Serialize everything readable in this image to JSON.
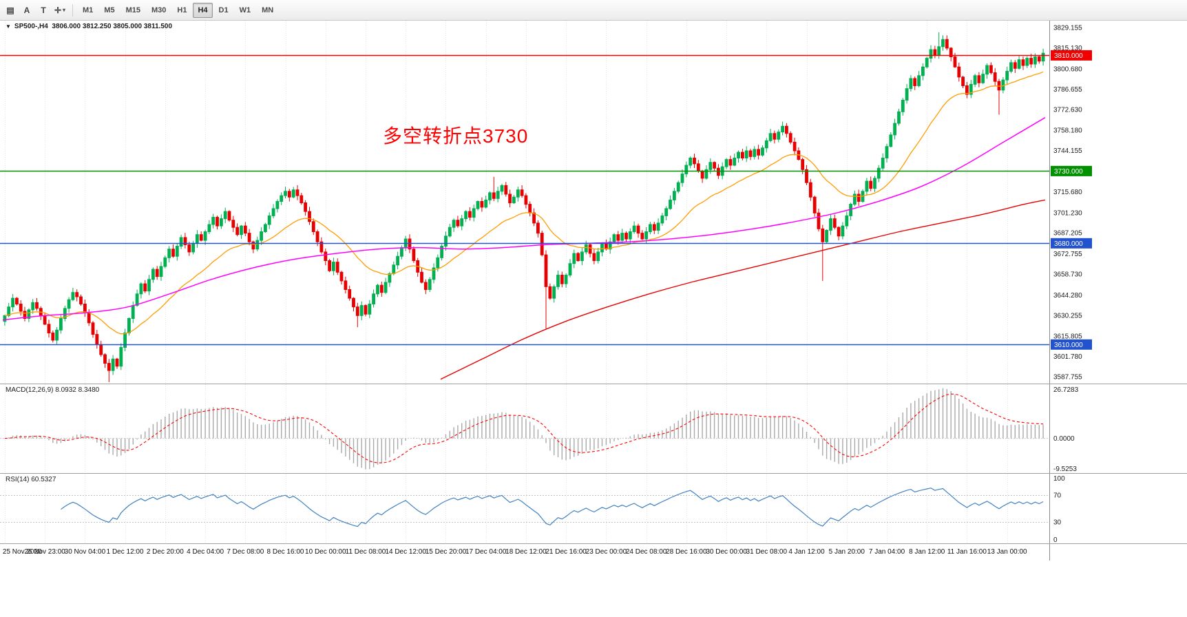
{
  "colors": {
    "up": "#00b051",
    "down": "#e60000",
    "ma_fast": "#ff9d00",
    "ma_mid": "#ff00ff",
    "ma_slow": "#e60000",
    "macd_hist": "#a9a9a9",
    "macd_signal": "#ff0000",
    "rsi": "#4080c0",
    "grid": "#e3e3e3",
    "axis_border": "#8a8a8a",
    "hline_red": "#f00000",
    "hline_green": "#009000",
    "hline_blue": "#2253cc",
    "annotation": "#ff0000"
  },
  "toolbar": {
    "tools": [
      {
        "id": "chart-window",
        "glyph": "▤"
      },
      {
        "id": "label-tool",
        "glyph": "A"
      },
      {
        "id": "text-tool",
        "glyph": "T"
      },
      {
        "id": "cursor-tool",
        "glyph": "✛",
        "caret": true
      }
    ],
    "timeframes": [
      "M1",
      "M5",
      "M15",
      "M30",
      "H1",
      "H4",
      "D1",
      "W1",
      "MN"
    ],
    "active_timeframe": "H4"
  },
  "chart": {
    "title": "SP500-,H4  3806.000 3812.250 3805.000 3811.500",
    "annotation": "多空转折点3730",
    "price_ticks": [
      "3829.155",
      "3815.130",
      "3800.680",
      "3786.655",
      "3772.630",
      "3758.180",
      "3744.155",
      "3715.680",
      "3701.230",
      "3687.205",
      "3672.755",
      "3658.730",
      "3644.280",
      "3630.255",
      "3615.805",
      "3601.780",
      "3587.755"
    ],
    "hlines": [
      {
        "price": 3810.0,
        "label": "3810.000",
        "color": "#f00000"
      },
      {
        "price": 3730.0,
        "label": "3730.000",
        "color": "#009000"
      },
      {
        "price": 3680.0,
        "label": "3680.000",
        "color": "#2253cc"
      },
      {
        "price": 3610.0,
        "label": "3610.000",
        "color": "#2253cc"
      }
    ],
    "macd": {
      "label": "MACD(12,26,9) 8.0932 8.3480",
      "axis": [
        "26.7283",
        "0.0000",
        "-9.5253"
      ]
    },
    "rsi": {
      "label": "RSI(14) 60.5327",
      "axis": [
        "100",
        "70",
        "30",
        "0"
      ],
      "levels": [
        70,
        30
      ]
    },
    "time_labels": [
      "25 Nov 2020",
      "26 Nov 23:00",
      "30 Nov 04:00",
      "1 Dec 12:00",
      "2 Dec 20:00",
      "4 Dec 04:00",
      "7 Dec 08:00",
      "8 Dec 16:00",
      "10 Dec 00:00",
      "11 Dec 08:00",
      "14 Dec 12:00",
      "15 Dec 20:00",
      "17 Dec 04:00",
      "18 Dec 12:00",
      "21 Dec 16:00",
      "23 Dec 00:00",
      "24 Dec 08:00",
      "28 Dec 16:00",
      "30 Dec 00:00",
      "31 Dec 08:00",
      "4 Jan 12:00",
      "5 Jan 20:00",
      "7 Jan 04:00",
      "8 Jan 12:00",
      "11 Jan 16:00",
      "13 Jan 00:00"
    ]
  },
  "chart_data": {
    "type": "candlestick",
    "symbol": "SP500-",
    "timeframe": "H4",
    "last_ohlc": {
      "open": 3806.0,
      "high": 3812.25,
      "low": 3805.0,
      "close": 3811.5
    },
    "price_range": [
      3583,
      3834
    ],
    "first_open": 3626,
    "closes": [
      3630,
      3636,
      3642,
      3638,
      3633,
      3628,
      3634,
      3639,
      3635,
      3630,
      3624,
      3618,
      3613,
      3620,
      3628,
      3635,
      3641,
      3646,
      3643,
      3638,
      3632,
      3625,
      3617,
      3610,
      3603,
      3597,
      3592,
      3600,
      3595,
      3608,
      3618,
      3628,
      3637,
      3645,
      3652,
      3647,
      3655,
      3662,
      3657,
      3664,
      3670,
      3676,
      3671,
      3678,
      3684,
      3679,
      3674,
      3680,
      3686,
      3682,
      3688,
      3693,
      3698,
      3692,
      3697,
      3702,
      3696,
      3691,
      3686,
      3692,
      3687,
      3681,
      3676,
      3682,
      3688,
      3693,
      3699,
      3704,
      3709,
      3713,
      3716,
      3712,
      3717,
      3713,
      3708,
      3702,
      3695,
      3688,
      3681,
      3674,
      3668,
      3661,
      3667,
      3660,
      3654,
      3648,
      3642,
      3636,
      3630,
      3637,
      3631,
      3638,
      3645,
      3651,
      3646,
      3653,
      3659,
      3665,
      3671,
      3677,
      3683,
      3676,
      3668,
      3660,
      3653,
      3648,
      3655,
      3663,
      3670,
      3678,
      3685,
      3691,
      3696,
      3692,
      3697,
      3702,
      3698,
      3704,
      3709,
      3705,
      3710,
      3715,
      3711,
      3716,
      3720,
      3714,
      3708,
      3712,
      3717,
      3713,
      3707,
      3701,
      3694,
      3687,
      3672,
      3650,
      3642,
      3650,
      3658,
      3652,
      3658,
      3666,
      3673,
      3668,
      3674,
      3679,
      3673,
      3668,
      3674,
      3680,
      3676,
      3681,
      3686,
      3682,
      3687,
      3683,
      3688,
      3692,
      3687,
      3683,
      3688,
      3693,
      3689,
      3694,
      3699,
      3704,
      3710,
      3716,
      3722,
      3728,
      3734,
      3739,
      3735,
      3730,
      3725,
      3731,
      3736,
      3732,
      3727,
      3733,
      3738,
      3734,
      3739,
      3743,
      3739,
      3744,
      3740,
      3745,
      3741,
      3746,
      3751,
      3756,
      3752,
      3757,
      3761,
      3756,
      3750,
      3744,
      3738,
      3731,
      3722,
      3712,
      3701,
      3690,
      3681,
      3689,
      3697,
      3691,
      3685,
      3692,
      3699,
      3707,
      3714,
      3709,
      3716,
      3723,
      3718,
      3725,
      3732,
      3739,
      3747,
      3755,
      3763,
      3771,
      3779,
      3787,
      3794,
      3789,
      3796,
      3802,
      3808,
      3814,
      3810,
      3816,
      3821,
      3815,
      3809,
      3802,
      3795,
      3789,
      3783,
      3790,
      3796,
      3791,
      3797,
      3803,
      3798,
      3792,
      3786,
      3793,
      3799,
      3805,
      3801,
      3807,
      3803,
      3808,
      3804,
      3809,
      3806,
      3811.5
    ],
    "wick_overrides": {
      "26": {
        "low": 3584
      },
      "88": {
        "low": 3622
      },
      "122": {
        "high": 3726
      },
      "135": {
        "low": 3621
      },
      "204": {
        "low": 3654
      },
      "233": {
        "high": 3826
      },
      "248": {
        "low": 3769
      }
    },
    "moving_averages": {
      "fast_ema_period": 24,
      "mid_points": [
        [
          0,
          3627
        ],
        [
          0.04,
          3630
        ],
        [
          0.08,
          3632
        ],
        [
          0.12,
          3636
        ],
        [
          0.16,
          3645
        ],
        [
          0.2,
          3655
        ],
        [
          0.24,
          3663
        ],
        [
          0.28,
          3669
        ],
        [
          0.32,
          3673
        ],
        [
          0.36,
          3676
        ],
        [
          0.4,
          3677
        ],
        [
          0.44,
          3676
        ],
        [
          0.48,
          3677
        ],
        [
          0.52,
          3679
        ],
        [
          0.56,
          3680
        ],
        [
          0.6,
          3681
        ],
        [
          0.64,
          3683
        ],
        [
          0.68,
          3686
        ],
        [
          0.72,
          3690
        ],
        [
          0.76,
          3695
        ],
        [
          0.8,
          3701
        ],
        [
          0.84,
          3709
        ],
        [
          0.88,
          3719
        ],
        [
          0.92,
          3733
        ],
        [
          0.96,
          3750
        ],
        [
          1,
          3767
        ]
      ],
      "slow_points": [
        [
          0.42,
          3586
        ],
        [
          0.46,
          3600
        ],
        [
          0.5,
          3614
        ],
        [
          0.54,
          3626
        ],
        [
          0.58,
          3636
        ],
        [
          0.62,
          3645
        ],
        [
          0.66,
          3653
        ],
        [
          0.7,
          3660
        ],
        [
          0.74,
          3667
        ],
        [
          0.78,
          3674
        ],
        [
          0.82,
          3681
        ],
        [
          0.86,
          3688
        ],
        [
          0.9,
          3694
        ],
        [
          0.94,
          3700
        ],
        [
          0.98,
          3707
        ],
        [
          1,
          3710
        ]
      ]
    },
    "horizontal_lines": [
      3810,
      3730,
      3680,
      3610
    ],
    "indicators": {
      "macd": {
        "fast": 12,
        "slow": 26,
        "signal": 9,
        "current_values": [
          8.0932,
          8.348
        ]
      },
      "rsi": {
        "period": 14,
        "current_value": 60.5327
      }
    }
  }
}
